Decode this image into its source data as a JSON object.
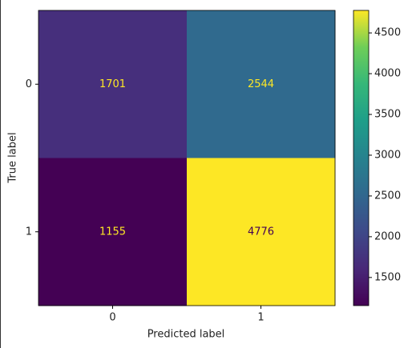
{
  "chart_data": {
    "type": "heatmap",
    "x_label": "Predicted label",
    "y_label": "True label",
    "x_categories": [
      "0",
      "1"
    ],
    "y_categories": [
      "0",
      "1"
    ],
    "values": [
      [
        1701,
        2544
      ],
      [
        1155,
        4776
      ]
    ],
    "colormap": "viridis",
    "colorbar": {
      "lim": [
        1155,
        4776
      ],
      "ticks": [
        1500,
        2000,
        2500,
        3000,
        3500,
        4000,
        4500
      ]
    }
  }
}
